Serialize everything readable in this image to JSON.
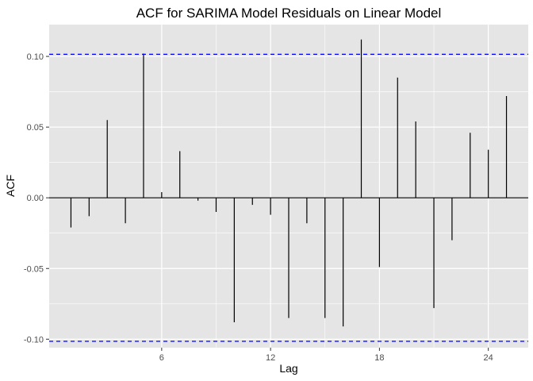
{
  "chart_data": {
    "type": "bar",
    "title": "ACF for SARIMA Model Residuals on Linear Model",
    "xlabel": "Lag",
    "ylabel": "ACF",
    "x": [
      1,
      2,
      3,
      4,
      5,
      6,
      7,
      8,
      9,
      10,
      11,
      12,
      13,
      14,
      15,
      16,
      17,
      18,
      19,
      20,
      21,
      22,
      23,
      24,
      25
    ],
    "values": [
      -0.021,
      -0.013,
      0.055,
      -0.018,
      0.102,
      0.004,
      0.033,
      -0.002,
      -0.01,
      -0.088,
      -0.005,
      -0.012,
      -0.085,
      -0.018,
      -0.085,
      -0.091,
      0.112,
      -0.049,
      0.085,
      0.054,
      -0.078,
      -0.03,
      0.046,
      0.034,
      0.072
    ],
    "confidence_bound": 0.1015,
    "xlim": [
      -0.2,
      26.2
    ],
    "ylim": [
      -0.106,
      0.1225
    ],
    "x_ticks": [
      6,
      12,
      18,
      24
    ],
    "x_tick_labels": [
      "6",
      "12",
      "18",
      "24"
    ],
    "y_ticks": [
      -0.1,
      -0.05,
      0.0,
      0.05,
      0.1
    ],
    "y_tick_labels": [
      "-0.10",
      "-0.05",
      "0.00",
      "0.05",
      "0.10"
    ],
    "grid": true,
    "colors": {
      "panel_background": "#e5e5e5",
      "grid": "#ffffff",
      "bars": "#000000",
      "confidence_line": "#0000ff"
    }
  }
}
